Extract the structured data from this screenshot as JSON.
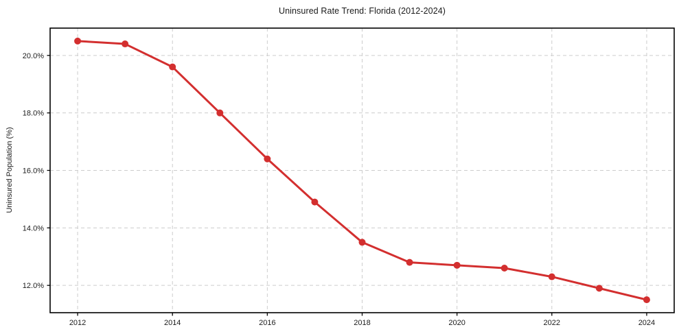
{
  "chart_data": {
    "type": "line",
    "title": "Uninsured Rate Trend: Florida (2012-2024)",
    "xlabel": "",
    "ylabel": "Uninsured Population (%)",
    "x": [
      2012,
      2013,
      2014,
      2015,
      2016,
      2017,
      2018,
      2019,
      2020,
      2021,
      2022,
      2023,
      2024
    ],
    "values": [
      20.5,
      20.4,
      19.6,
      18.0,
      16.4,
      14.9,
      13.5,
      12.8,
      12.7,
      12.6,
      12.3,
      11.9,
      11.5
    ],
    "xlim": [
      2011.42,
      2024.58
    ],
    "ylim": [
      11.05,
      20.95
    ],
    "xticks": [
      2012,
      2014,
      2016,
      2018,
      2020,
      2022,
      2024
    ],
    "xtick_labels": [
      "2012",
      "2014",
      "2016",
      "2018",
      "2020",
      "2022",
      "2024"
    ],
    "yticks": [
      12,
      14,
      16,
      18,
      20
    ],
    "ytick_labels": [
      "12.0%",
      "14.0%",
      "16.0%",
      "18.0%",
      "20.0%"
    ],
    "grid": true,
    "legend": "none",
    "colors": {
      "line": "#d32f2f",
      "marker": "#d32f2f",
      "grid": "#cccccc",
      "spine": "#000000",
      "text": "#1a1a1a",
      "background": "#ffffff"
    }
  }
}
